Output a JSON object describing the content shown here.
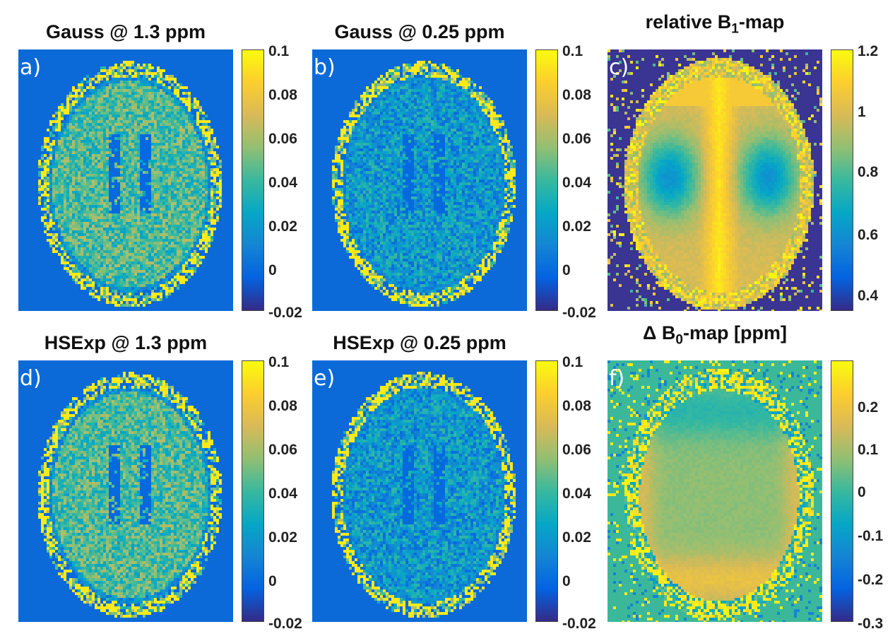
{
  "colors": {
    "parula": [
      "#352a87",
      "#0363e1",
      "#1485d4",
      "#06a7c6",
      "#38b99e",
      "#92bf73",
      "#d9ba56",
      "#fcce2e",
      "#f9fb0e"
    ],
    "background_blue": "#0b6ad8",
    "b1_background": "#3a3493",
    "b0_background": "#3bb89a"
  },
  "panels": [
    {
      "id": "a",
      "title": "Gauss @ 1.3 ppm",
      "label": "a)",
      "map": "brain_fine",
      "ticks": [
        "0.1",
        "0.08",
        "0.06",
        "0.04",
        "0.02",
        "0",
        "-0.02"
      ]
    },
    {
      "id": "b",
      "title": "Gauss @ 0.25 ppm",
      "label": "b)",
      "map": "brain_low",
      "ticks": [
        "0.1",
        "0.08",
        "0.06",
        "0.04",
        "0.02",
        "0",
        "-0.02"
      ]
    },
    {
      "id": "c",
      "title_main": "relative B",
      "title_sub": "1",
      "title_tail": "-map",
      "label": "c)",
      "map": "b1",
      "ticks": [
        "1.2",
        "1",
        "0.8",
        "0.6",
        "0.4"
      ]
    },
    {
      "id": "d",
      "title": "HSExp @ 1.3 ppm",
      "label": "d)",
      "map": "brain_fine",
      "ticks": [
        "0.1",
        "0.08",
        "0.06",
        "0.04",
        "0.02",
        "0",
        "-0.02"
      ]
    },
    {
      "id": "e",
      "title": "HSExp @ 0.25 ppm",
      "label": "e)",
      "map": "brain_low",
      "ticks": [
        "0.1",
        "0.08",
        "0.06",
        "0.04",
        "0.02",
        "0",
        "-0.02"
      ]
    },
    {
      "id": "f",
      "title_main": "Δ B",
      "title_sub": "0",
      "title_tail": "-map [ppm]",
      "label": "f)",
      "map": "b0",
      "ticks": [
        "0.2",
        "0.1",
        "0",
        "-0.1",
        "-0.2",
        "-0.3"
      ]
    }
  ]
}
